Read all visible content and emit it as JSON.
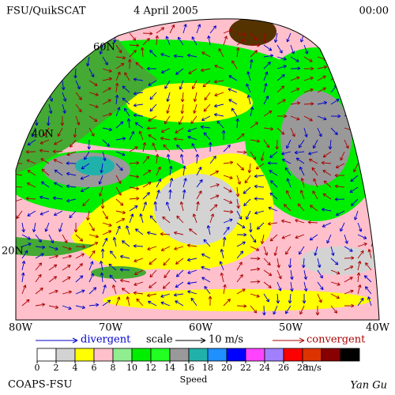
{
  "header": {
    "source": "FSU/QuikSCAT",
    "date": "4 April 2005",
    "time": "00:00"
  },
  "map": {
    "lat_labels": [
      "60N",
      "40N",
      "20N"
    ],
    "lon_labels": [
      "80W",
      "70W",
      "60W",
      "50W",
      "40W"
    ]
  },
  "legend": {
    "divergent": "divergent",
    "scale": "scale",
    "scale_value": "10 m/s",
    "convergent": "convergent",
    "divergent_color": "#0000cc",
    "convergent_color": "#aa0000"
  },
  "colorbar": {
    "ticks": [
      0,
      2,
      4,
      6,
      8,
      10,
      12,
      14,
      16,
      18,
      20,
      22,
      24,
      26,
      28
    ],
    "colors": [
      "#ffffff",
      "#d3d3d3",
      "#ffff00",
      "#ffc0cb",
      "#90ee90",
      "#00ee00",
      "#22ff22",
      "#999999",
      "#20b2aa",
      "#1e90ff",
      "#0000ff",
      "#ff44ff",
      "#a080ff",
      "#ff0000",
      "#dd3300",
      "#880000",
      "#000000"
    ],
    "unit": "m/s",
    "label": "Speed"
  },
  "footer": {
    "credit": "COAPS-FSU",
    "author": "Yan Gu"
  }
}
